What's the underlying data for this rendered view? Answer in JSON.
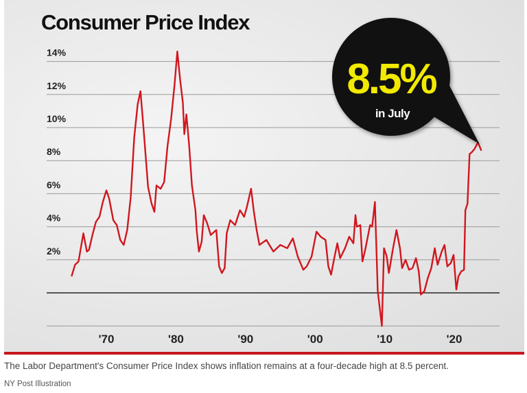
{
  "title": "Consumer Price Index",
  "callout": {
    "value": "8.5%",
    "label": "in July"
  },
  "caption": "The Labor Department's Consumer Price Index shows inflation remains at a four-decade high at 8.5 percent.",
  "credit": "NY Post Illustration",
  "colors": {
    "line": "#d0161e",
    "callout_bg": "#111111",
    "callout_value": "#f2ea00",
    "rule": "#c8161d"
  },
  "chart_data": {
    "type": "line",
    "title": "Consumer Price Index",
    "xlabel": "",
    "ylabel": "",
    "ylim": [
      -2,
      14
    ],
    "xlim": [
      1965,
      2024
    ],
    "grid": true,
    "y_ticks": [
      {
        "v": 14,
        "label": "14%"
      },
      {
        "v": 12,
        "label": "12%"
      },
      {
        "v": 10,
        "label": "10%"
      },
      {
        "v": 8,
        "label": "8%"
      },
      {
        "v": 6,
        "label": "6%"
      },
      {
        "v": 4,
        "label": "4%"
      },
      {
        "v": 2,
        "label": "2%"
      },
      {
        "v": 0,
        "label": ""
      },
      {
        "v": -2,
        "label": ""
      }
    ],
    "x_ticks": [
      {
        "v": 1970,
        "label": "'70"
      },
      {
        "v": 1980,
        "label": "'80"
      },
      {
        "v": 1990,
        "label": "'90"
      },
      {
        "v": 2000,
        "label": "'00"
      },
      {
        "v": 2010,
        "label": "'10"
      },
      {
        "v": 2020,
        "label": "'20"
      }
    ],
    "points": [
      [
        1965.0,
        1.0
      ],
      [
        1965.5,
        1.7
      ],
      [
        1966.0,
        1.9
      ],
      [
        1966.7,
        3.6
      ],
      [
        1967.2,
        2.5
      ],
      [
        1967.5,
        2.6
      ],
      [
        1968.0,
        3.5
      ],
      [
        1968.5,
        4.3
      ],
      [
        1969.0,
        4.6
      ],
      [
        1969.5,
        5.5
      ],
      [
        1970.0,
        6.2
      ],
      [
        1970.4,
        5.7
      ],
      [
        1971.0,
        4.4
      ],
      [
        1971.5,
        4.1
      ],
      [
        1972.0,
        3.2
      ],
      [
        1972.5,
        2.9
      ],
      [
        1973.0,
        3.8
      ],
      [
        1973.5,
        5.8
      ],
      [
        1974.0,
        9.4
      ],
      [
        1974.5,
        11.4
      ],
      [
        1974.9,
        12.2
      ],
      [
        1975.3,
        10.2
      ],
      [
        1975.7,
        8.0
      ],
      [
        1976.0,
        6.4
      ],
      [
        1976.5,
        5.4
      ],
      [
        1976.9,
        4.9
      ],
      [
        1977.2,
        6.5
      ],
      [
        1977.8,
        6.3
      ],
      [
        1978.3,
        6.7
      ],
      [
        1978.8,
        8.9
      ],
      [
        1979.3,
        10.5
      ],
      [
        1979.8,
        12.6
      ],
      [
        1980.2,
        14.6
      ],
      [
        1980.6,
        12.9
      ],
      [
        1981.0,
        11.5
      ],
      [
        1981.2,
        9.6
      ],
      [
        1981.5,
        10.8
      ],
      [
        1981.9,
        8.9
      ],
      [
        1982.3,
        6.5
      ],
      [
        1982.8,
        5.0
      ],
      [
        1983.0,
        3.7
      ],
      [
        1983.3,
        2.5
      ],
      [
        1983.7,
        3.1
      ],
      [
        1984.0,
        4.7
      ],
      [
        1984.5,
        4.2
      ],
      [
        1985.0,
        3.5
      ],
      [
        1985.8,
        3.8
      ],
      [
        1986.2,
        1.6
      ],
      [
        1986.6,
        1.2
      ],
      [
        1987.0,
        1.5
      ],
      [
        1987.3,
        3.6
      ],
      [
        1987.8,
        4.4
      ],
      [
        1988.5,
        4.1
      ],
      [
        1989.2,
        5.0
      ],
      [
        1989.8,
        4.6
      ],
      [
        1990.2,
        5.2
      ],
      [
        1990.8,
        6.3
      ],
      [
        1991.2,
        4.9
      ],
      [
        1991.6,
        3.8
      ],
      [
        1992.0,
        2.9
      ],
      [
        1993.0,
        3.2
      ],
      [
        1994.0,
        2.5
      ],
      [
        1995.0,
        2.9
      ],
      [
        1996.0,
        2.7
      ],
      [
        1996.8,
        3.3
      ],
      [
        1997.5,
        2.2
      ],
      [
        1998.3,
        1.4
      ],
      [
        1998.8,
        1.6
      ],
      [
        1999.5,
        2.2
      ],
      [
        2000.2,
        3.7
      ],
      [
        2000.8,
        3.4
      ],
      [
        2001.5,
        3.2
      ],
      [
        2001.9,
        1.6
      ],
      [
        2002.3,
        1.1
      ],
      [
        2002.8,
        2.2
      ],
      [
        2003.2,
        3.0
      ],
      [
        2003.6,
        2.1
      ],
      [
        2004.3,
        2.7
      ],
      [
        2004.9,
        3.4
      ],
      [
        2005.5,
        3.0
      ],
      [
        2005.8,
        4.7
      ],
      [
        2006.0,
        4.0
      ],
      [
        2006.5,
        4.1
      ],
      [
        2006.8,
        1.9
      ],
      [
        2007.2,
        2.6
      ],
      [
        2007.9,
        4.1
      ],
      [
        2008.2,
        4.0
      ],
      [
        2008.6,
        5.5
      ],
      [
        2009.0,
        0.1
      ],
      [
        2009.6,
        -2.0
      ],
      [
        2009.9,
        2.7
      ],
      [
        2010.3,
        2.2
      ],
      [
        2010.6,
        1.2
      ],
      [
        2011.2,
        2.7
      ],
      [
        2011.7,
        3.8
      ],
      [
        2012.2,
        2.7
      ],
      [
        2012.5,
        1.5
      ],
      [
        2013.0,
        2.0
      ],
      [
        2013.5,
        1.4
      ],
      [
        2014.0,
        1.5
      ],
      [
        2014.5,
        2.1
      ],
      [
        2014.9,
        1.3
      ],
      [
        2015.2,
        -0.1
      ],
      [
        2015.7,
        0.1
      ],
      [
        2016.2,
        0.9
      ],
      [
        2016.7,
        1.5
      ],
      [
        2017.2,
        2.7
      ],
      [
        2017.6,
        1.7
      ],
      [
        2018.2,
        2.5
      ],
      [
        2018.6,
        2.9
      ],
      [
        2019.0,
        1.6
      ],
      [
        2019.5,
        1.8
      ],
      [
        2019.9,
        2.3
      ],
      [
        2020.3,
        0.2
      ],
      [
        2020.6,
        1.0
      ],
      [
        2021.0,
        1.3
      ],
      [
        2021.4,
        1.4
      ],
      [
        2021.6,
        5.0
      ],
      [
        2021.9,
        5.4
      ],
      [
        2022.2,
        8.4
      ],
      [
        2022.5,
        8.5
      ],
      [
        2022.9,
        8.7
      ],
      [
        2023.4,
        9.1
      ],
      [
        2023.9,
        8.6
      ]
    ]
  }
}
